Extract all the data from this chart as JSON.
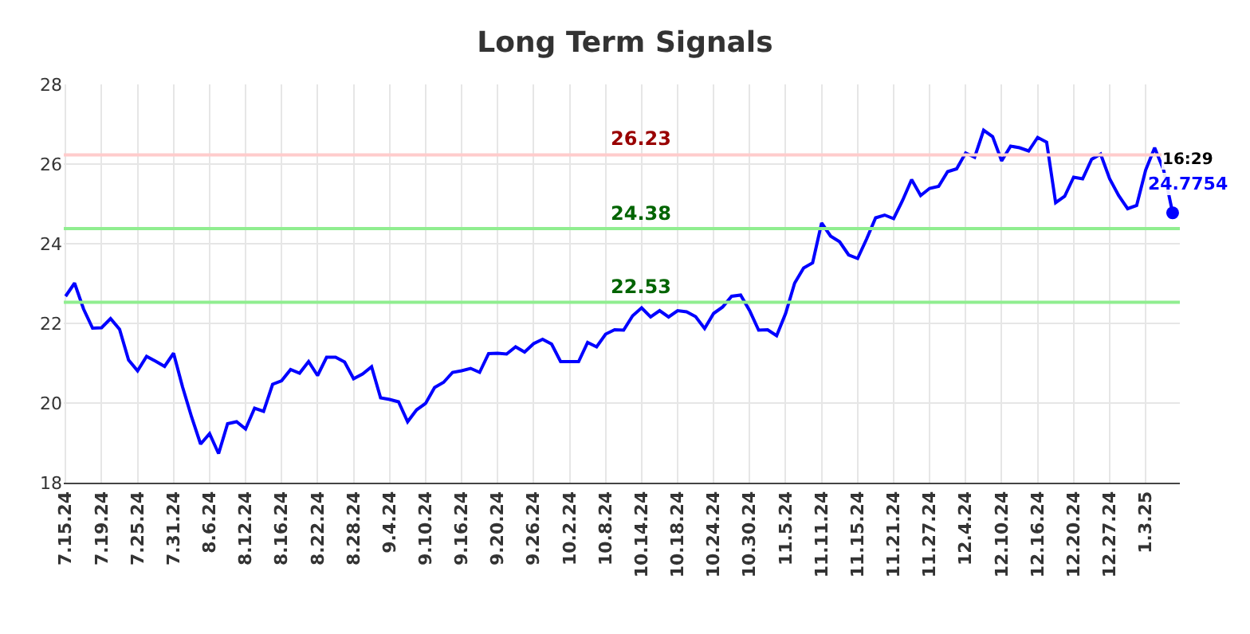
{
  "chart_data": {
    "type": "line",
    "title": "Long Term Signals",
    "categories": [
      "7.15.24",
      null,
      null,
      null,
      "7.19.24",
      null,
      null,
      null,
      "7.25.24",
      null,
      null,
      null,
      "7.31.24",
      null,
      null,
      null,
      "8.6.24",
      null,
      null,
      null,
      "8.12.24",
      null,
      null,
      null,
      "8.16.24",
      null,
      null,
      null,
      "8.22.24",
      null,
      null,
      null,
      "8.28.24",
      null,
      null,
      null,
      "9.4.24",
      null,
      null,
      null,
      "9.10.24",
      null,
      null,
      null,
      "9.16.24",
      null,
      null,
      null,
      "9.20.24",
      null,
      null,
      null,
      "9.26.24",
      null,
      null,
      null,
      "10.2.24",
      null,
      null,
      null,
      "10.8.24",
      null,
      null,
      null,
      "10.14.24",
      null,
      null,
      null,
      "10.18.24",
      null,
      null,
      null,
      "10.24.24",
      null,
      null,
      null,
      "10.30.24",
      null,
      null,
      null,
      "11.5.24",
      null,
      null,
      null,
      "11.11.24",
      null,
      null,
      null,
      "11.15.24",
      null,
      null,
      null,
      "11.21.24",
      null,
      null,
      null,
      "11.27.24",
      null,
      null,
      null,
      "12.4.24",
      null,
      null,
      null,
      "12.10.24",
      null,
      null,
      null,
      "12.16.24",
      null,
      null,
      null,
      "12.20.24",
      null,
      null,
      null,
      "12.27.24",
      null,
      null,
      null,
      "1.3.25",
      null,
      null,
      null
    ],
    "series": [
      {
        "color": "#0000ff",
        "values": [
          22.68,
          23.01,
          22.36,
          21.88,
          21.89,
          22.12,
          21.85,
          21.08,
          20.81,
          21.17,
          21.05,
          20.92,
          21.25,
          20.4,
          19.65,
          18.97,
          19.23,
          18.73,
          19.48,
          19.53,
          19.35,
          19.87,
          19.79,
          20.47,
          20.56,
          20.84,
          20.75,
          21.04,
          20.69,
          21.15,
          21.15,
          21.03,
          20.61,
          20.73,
          20.91,
          20.13,
          20.09,
          20.03,
          19.53,
          19.83,
          19.99,
          20.39,
          20.52,
          20.77,
          20.81,
          20.87,
          20.77,
          21.24,
          21.25,
          21.23,
          21.41,
          21.28,
          21.49,
          21.6,
          21.48,
          21.04,
          21.04,
          21.04,
          21.52,
          21.41,
          21.73,
          21.84,
          21.83,
          22.19,
          22.39,
          22.16,
          22.32,
          22.16,
          22.32,
          22.29,
          22.17,
          21.87,
          22.25,
          22.41,
          22.68,
          22.71,
          22.32,
          21.83,
          21.84,
          21.69,
          22.25,
          23.01,
          23.39,
          23.52,
          24.52,
          24.19,
          24.05,
          23.72,
          23.63,
          24.12,
          24.65,
          24.72,
          24.63,
          25.09,
          25.61,
          25.21,
          25.39,
          25.44,
          25.81,
          25.88,
          26.28,
          26.17,
          26.85,
          26.69,
          26.08,
          26.45,
          26.41,
          26.33,
          26.67,
          26.55,
          25.03,
          25.19,
          25.67,
          25.63,
          26.12,
          26.25,
          25.63,
          25.21,
          24.88,
          24.96,
          25.85,
          26.41,
          25.85,
          24.7754
        ],
        "value_labels": [
          null,
          null,
          null,
          null,
          null,
          null,
          null,
          null,
          null,
          null,
          null,
          null,
          null,
          null,
          null,
          null,
          null,
          null,
          null,
          null,
          null,
          null,
          null,
          null,
          null,
          null,
          null,
          null,
          null,
          null,
          null,
          null,
          null,
          null,
          null,
          null,
          null,
          null,
          null,
          null,
          null,
          null,
          null,
          null,
          null,
          null,
          null,
          null,
          null,
          null,
          null,
          null,
          null,
          null,
          null,
          null,
          null,
          null,
          null,
          null,
          null,
          null,
          null,
          null,
          null,
          null,
          null,
          null,
          null,
          null,
          null,
          null,
          null,
          null,
          null,
          null,
          null,
          null,
          null,
          null,
          null,
          null,
          null,
          null,
          null,
          null,
          null,
          null,
          null,
          null,
          null,
          null,
          null,
          null,
          null,
          null,
          null,
          null,
          null,
          null,
          null,
          null,
          null,
          null,
          null,
          null,
          null,
          null,
          null,
          null,
          null,
          null,
          null,
          null,
          null,
          null,
          null,
          null,
          null,
          null,
          null,
          null,
          null,
          "24.7754"
        ]
      }
    ],
    "ylim": [
      18,
      28
    ],
    "yticks": [
      18,
      20,
      22,
      24,
      26,
      28
    ],
    "grid": true,
    "ref_lines": [
      {
        "axis": "y",
        "value": 26.23,
        "label": "26.23",
        "color": "#ffcccc"
      },
      {
        "axis": "y",
        "value": 24.38,
        "label": "24.38",
        "color": "#90ee90"
      },
      {
        "axis": "y",
        "value": 22.53,
        "label": "22.53",
        "color": "#90ee90"
      }
    ],
    "annotations": [
      "16:29"
    ]
  }
}
